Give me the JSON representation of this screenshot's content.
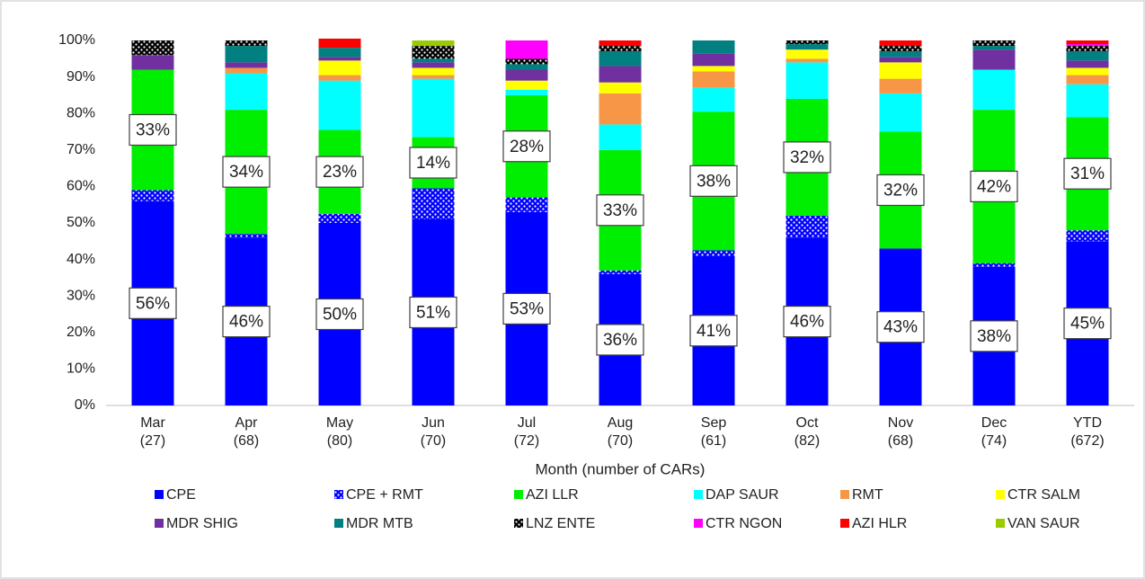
{
  "chart_data": {
    "type": "stacked_bar",
    "x_label": "Month (number of CARs)",
    "categories": [
      [
        "Mar",
        "(27)"
      ],
      [
        "Apr",
        "(68)"
      ],
      [
        "May",
        "(80)"
      ],
      [
        "Jun",
        "(70)"
      ],
      [
        "Jul",
        "(72)"
      ],
      [
        "Aug",
        "(70)"
      ],
      [
        "Sep",
        "(61)"
      ],
      [
        "Oct",
        "(82)"
      ],
      [
        "Nov",
        "(68)"
      ],
      [
        "Dec",
        "(74)"
      ],
      [
        "YTD",
        "(672)"
      ]
    ],
    "ylim": [
      0,
      100
    ],
    "yticks": [
      {
        "value": 0,
        "label": "0%"
      },
      {
        "value": 10,
        "label": "10%"
      },
      {
        "value": 20,
        "label": "20%"
      },
      {
        "value": 30,
        "label": "30%"
      },
      {
        "value": 40,
        "label": "40%"
      },
      {
        "value": 50,
        "label": "50%"
      },
      {
        "value": 60,
        "label": "60%"
      },
      {
        "value": 70,
        "label": "70%"
      },
      {
        "value": 80,
        "label": "80%"
      },
      {
        "value": 90,
        "label": "90%"
      },
      {
        "value": 100,
        "label": "100%"
      }
    ],
    "grid": false,
    "legend": "bottom",
    "series": [
      {
        "name": "CPE",
        "color": "#0000ff",
        "values": [
          56,
          46,
          50,
          51,
          53,
          36,
          41,
          46,
          43,
          38,
          45
        ],
        "value_labels": [
          "56%",
          "46%",
          "50%",
          "51%",
          "53%",
          "36%",
          "41%",
          "46%",
          "43%",
          "38%",
          "45%"
        ]
      },
      {
        "name": "CPE + RMT",
        "color": "#0000ff",
        "pattern": "dots",
        "values": [
          3,
          1,
          2.5,
          8.5,
          4,
          1,
          1.5,
          6,
          0,
          1,
          3
        ]
      },
      {
        "name": "AZI LLR",
        "color": "#00ee00",
        "values": [
          33,
          34,
          23,
          14,
          28,
          33,
          38,
          32,
          32,
          42,
          31
        ],
        "value_labels": [
          "33%",
          "34%",
          "23%",
          "14%",
          "28%",
          "33%",
          "38%",
          "32%",
          "32%",
          "42%",
          "31%"
        ]
      },
      {
        "name": "DAP SAUR",
        "color": "#00ffff",
        "values": [
          0,
          10,
          13.5,
          16,
          1.5,
          7,
          6.5,
          10,
          10.5,
          11,
          9
        ]
      },
      {
        "name": "RMT",
        "color": "#f79646",
        "values": [
          0,
          1.5,
          1.5,
          1,
          0,
          8.5,
          4.5,
          1,
          4,
          0,
          2.5
        ]
      },
      {
        "name": "CTR SALM",
        "color": "#ffff00",
        "values": [
          0,
          0,
          4,
          2,
          2.5,
          3,
          1.5,
          2.5,
          4.5,
          0,
          2
        ]
      },
      {
        "name": "MDR SHIG",
        "color": "#7030a0",
        "values": [
          4,
          1.5,
          1,
          1.5,
          3,
          4.5,
          3.5,
          0,
          1.5,
          5.5,
          2
        ]
      },
      {
        "name": "MDR MTB",
        "color": "#008080",
        "values": [
          0,
          4.5,
          2.5,
          1,
          1.5,
          4,
          3.5,
          1.5,
          1.5,
          1,
          2.5
        ]
      },
      {
        "name": "LNZ ENTE",
        "color": "#000000",
        "pattern": "dots",
        "values": [
          4,
          1.5,
          0,
          3.5,
          1.5,
          1.5,
          0,
          1,
          1.5,
          1.5,
          1.5
        ]
      },
      {
        "name": "CTR NGON",
        "color": "#ff00ff",
        "values": [
          0,
          0,
          0,
          0,
          5,
          0,
          0,
          0,
          0,
          0,
          0.5
        ]
      },
      {
        "name": "AZI HLR",
        "color": "#ff0000",
        "values": [
          0,
          0,
          2.5,
          0,
          0,
          1.5,
          0,
          0,
          1.5,
          0,
          1
        ]
      },
      {
        "name": "VAN SAUR",
        "color": "#99cc00",
        "values": [
          0,
          0,
          0,
          1.5,
          0,
          0,
          0,
          0,
          0,
          0,
          0
        ]
      }
    ]
  }
}
